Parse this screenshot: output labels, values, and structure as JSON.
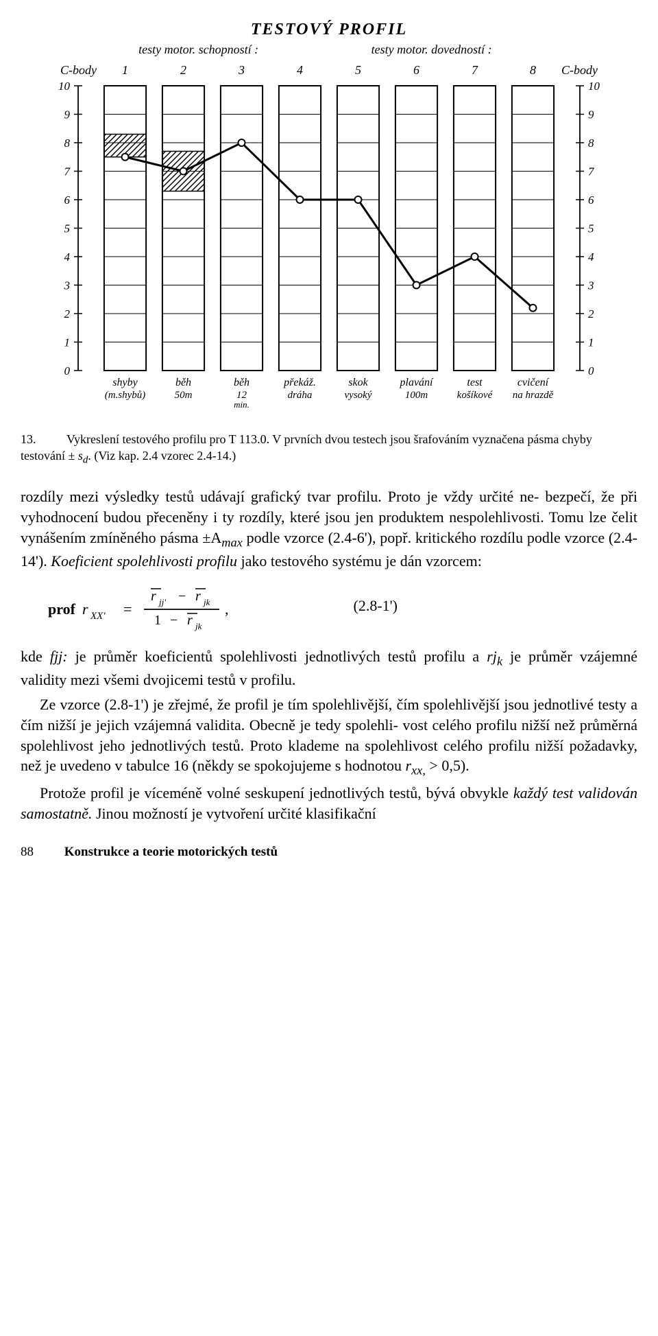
{
  "chart": {
    "title": "TESTOVÝ PROFIL",
    "subtitle_left": "testy motor. schopností :",
    "subtitle_right": "testy motor. dovedností :",
    "axis_label_left": "C-body",
    "axis_label_right": "C-body",
    "y_min": 0,
    "y_max": 10,
    "y_ticks": [
      0,
      1,
      2,
      3,
      4,
      5,
      6,
      7,
      8,
      9,
      10
    ],
    "columns": [
      1,
      2,
      3,
      4,
      5,
      6,
      7,
      8
    ],
    "categories": [
      {
        "l1": "shyby",
        "l2": "(m.shybů)"
      },
      {
        "l1": "běh",
        "l2": "50m"
      },
      {
        "l1": "běh",
        "l2": "12",
        "l3": "min."
      },
      {
        "l1": "překáž.",
        "l2": "dráha"
      },
      {
        "l1": "skok",
        "l2": "vysoký"
      },
      {
        "l1": "plavání",
        "l2": "100m"
      },
      {
        "l1": "test",
        "l2": "košíkové"
      },
      {
        "l1": "cvičení",
        "l2": "na hrazdě"
      }
    ],
    "profile_values": [
      7.5,
      7,
      8,
      6,
      6,
      3,
      4,
      2.2
    ],
    "error_bands": [
      {
        "col": 1,
        "low": 7.5,
        "high": 8.3
      },
      {
        "col": 2,
        "low": 6.3,
        "high": 7.7
      }
    ],
    "colors": {
      "line": "#000000",
      "marker_fill": "#ffffff",
      "grid": "#000000",
      "bar_border": "#000000",
      "hatch": "#000000",
      "background": "#ffffff"
    },
    "line_width": 3,
    "marker_radius": 5,
    "bar_width_ratio": 0.72
  },
  "caption": {
    "num": "13.",
    "text_a": "Vykreslení testového profilu pro T 113.0. V prvních dvou testech jsou šrafováním vyznačena pásma chyby testování ± ",
    "text_sd": "s",
    "text_sub": "d",
    "text_b": ". (Viz kap. 2.4 vzorec 2.4-14.)"
  },
  "body": {
    "p1": "rozdíly mezi výsledky testů udávají grafický tvar profilu. Proto je vždy určité ne-\nbezpečí, že při vyhodnocení budou přeceněny i ty rozdíly, které jsou jen produktem\nnespolehlivosti. Tomu lze čelit vynášením zmíněného pásma ±A",
    "p1_sub": "max",
    "p1b": " podle vzorce\n(2.4-6'), popř. kritického rozdílu podle vzorce (2.4-14'). ",
    "p1_koef": "Koeficient spolehlivosti\nprofilu",
    "p1c": " jako testového systému je dán vzorcem:",
    "formula_prefix": "prof",
    "formula_r": "r",
    "formula_sub1": "XX'",
    "formula_eq": "=",
    "formula_label": "(2.8-1')",
    "p2_a": "kde ",
    "p2_f": "fjj:",
    "p2_b": " je průměr koeficientů spolehlivosti jednotlivých testů profilu a ",
    "p2_rj": "rj",
    "p2_k": "k",
    "p2_c": " je průměr\nvzájemné validity mezi všemi dvojicemi testů v profilu.",
    "p3": "Ze vzorce (2.8-1') je zřejmé, že profil je tím spolehlivější, čím spolehlivější\njsou jednotlivé testy a čím nižší je jejich vzájemná validita. Obecně je tedy spolehli-\nvost celého profilu nižší než průměrná spolehlivost jeho jednotlivých testů. Proto klademe na spolehlivost celého profilu nižší požadavky, než je uvedeno v tabulce 16\n(někdy se spokojujeme s hodnotou ",
    "p3_r": "r",
    "p3_sub": "xx,",
    "p3b": " > 0,5).",
    "p4a": "Protože profil je víceméně volné seskupení jednotlivých testů, bývá obvykle\n",
    "p4_it": "každý test validován samostatně.",
    "p4b": " Jinou možností je vytvoření určité klasifikační"
  },
  "footer": {
    "page": "88",
    "title": "Konstrukce a teorie motorických testů"
  }
}
